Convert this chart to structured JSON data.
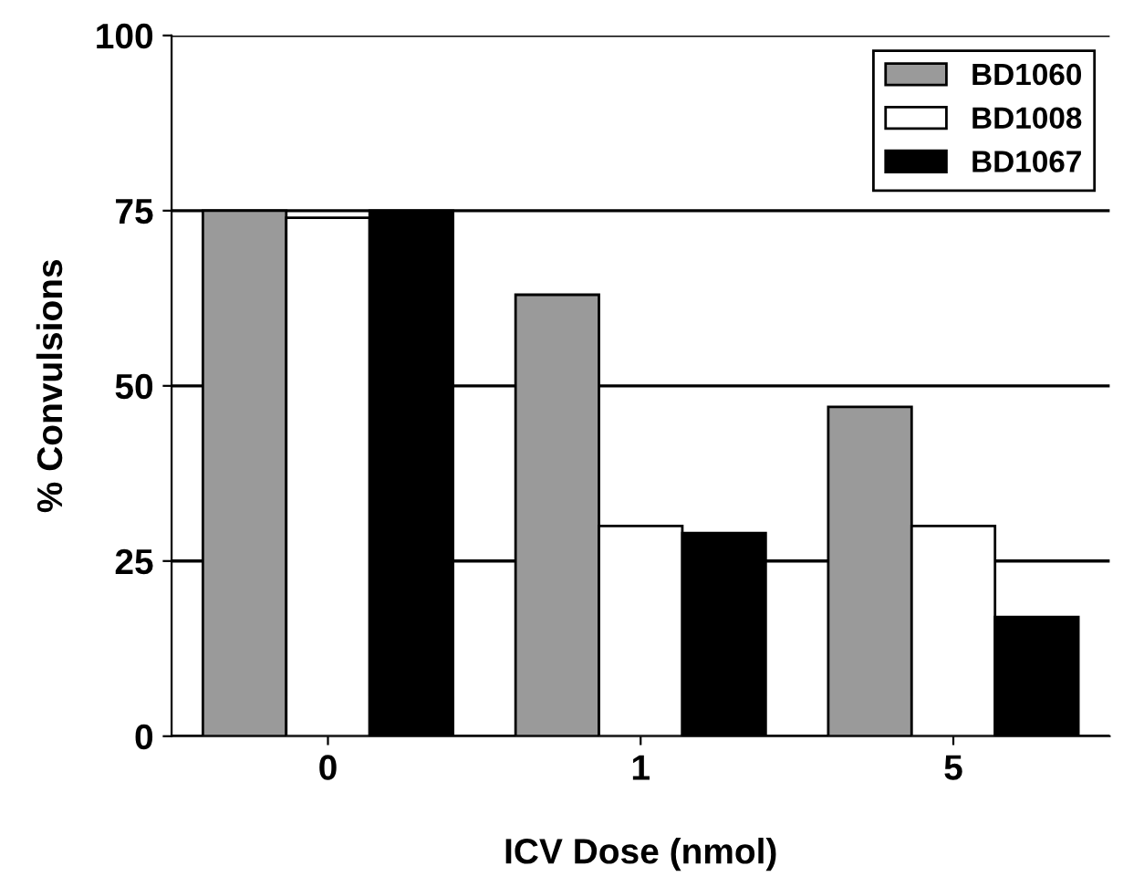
{
  "chart_data": {
    "type": "bar",
    "xlabel": "ICV Dose (nmol)",
    "ylabel": "% Convulsions",
    "categories": [
      "0",
      "1",
      "5"
    ],
    "series": [
      {
        "name": "BD1060",
        "color": "#9a9a9a",
        "values": [
          75,
          63,
          47
        ]
      },
      {
        "name": "BD1008",
        "color": "#ffffff",
        "values": [
          74,
          30,
          30
        ]
      },
      {
        "name": "BD1067",
        "color": "#000000",
        "values": [
          75,
          29,
          17
        ]
      }
    ],
    "ylim": [
      0,
      100
    ],
    "yticks": [
      0,
      25,
      50,
      75,
      100
    ],
    "grid": "y",
    "legend": "top right"
  }
}
